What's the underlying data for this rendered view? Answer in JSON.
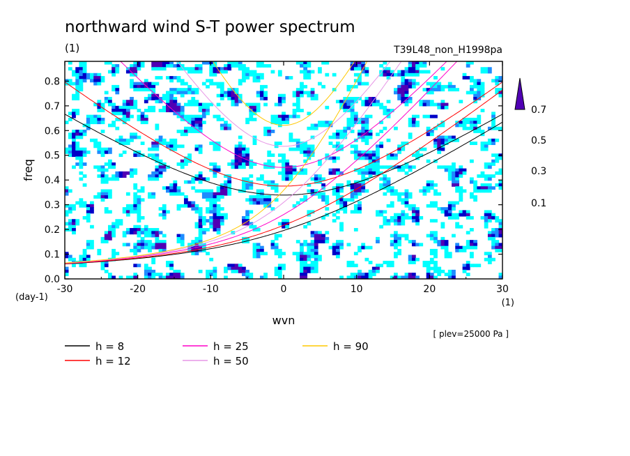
{
  "chart_data": {
    "type": "line",
    "title": "northward wind S-T power spectrum",
    "units_top_left": "(1)",
    "run_label": "T39L48_non_H1998pa",
    "xlabel": "wvn",
    "x_units": "(1)",
    "ylabel": "freq",
    "y_units": "(day-1)",
    "level_label": "[ plev=25000 Pa ]",
    "xlim": [
      -30,
      30
    ],
    "ylim": [
      0.0,
      0.88
    ],
    "x_ticks": [
      "-30",
      "-20",
      "-10",
      "0",
      "10",
      "20",
      "30"
    ],
    "y_ticks": [
      "0.0",
      "0.1",
      "0.2",
      "0.3",
      "0.4",
      "0.5",
      "0.6",
      "0.7",
      "0.8"
    ],
    "colorbar": {
      "levels": [
        "0.1",
        "0.3",
        "0.5",
        "0.7"
      ],
      "colors": [
        "#00ffff",
        "#1e8cff",
        "#0000c8",
        "#5000b4"
      ]
    },
    "legend": [
      {
        "label": "h =  8",
        "color": "#000000"
      },
      {
        "label": "h = 12",
        "color": "#ff0000"
      },
      {
        "label": "h = 25",
        "color": "#ff00c8"
      },
      {
        "label": "h = 50",
        "color": "#e696e6"
      },
      {
        "label": "h = 90",
        "color": "#ffc800"
      }
    ],
    "series": [
      {
        "name": "h =  8",
        "color": "#000000"
      },
      {
        "name": "h = 12",
        "color": "#ff0000"
      },
      {
        "name": "h = 25",
        "color": "#ff00c8"
      },
      {
        "name": "h = 50",
        "color": "#e696e6"
      },
      {
        "name": "h = 90",
        "color": "#ffc800"
      }
    ]
  }
}
